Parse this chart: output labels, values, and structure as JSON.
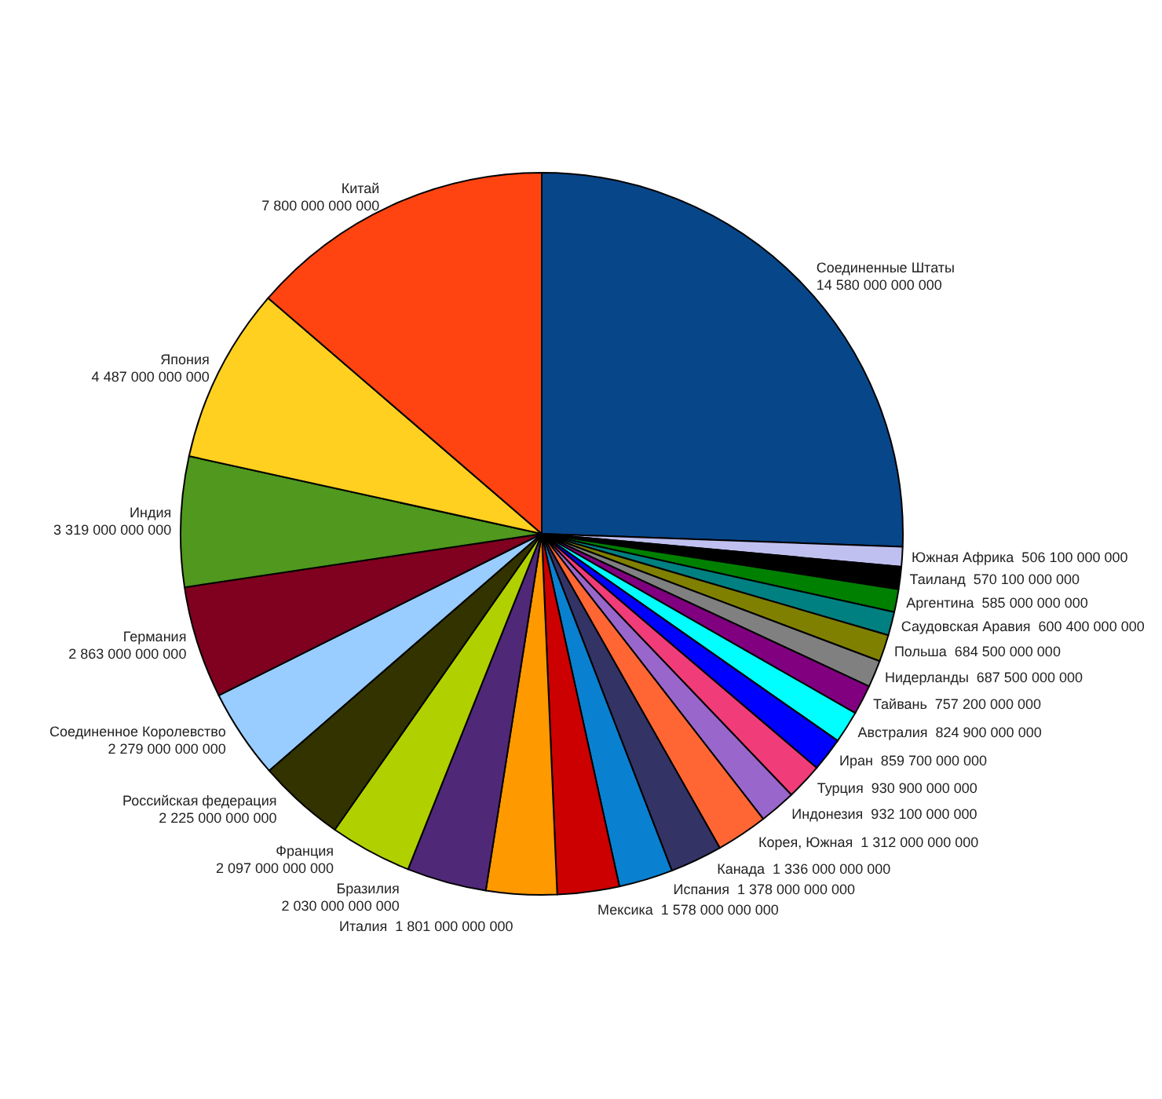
{
  "chart_data": {
    "type": "pie",
    "data_labels": true,
    "categories": [
      "Соединенные Штаты",
      "Южная Африка",
      "Таиланд",
      "Аргентина",
      "Саудовская Аравия",
      "Польша",
      "Нидерланды",
      "Тайвань",
      "Австралия",
      "Иран",
      "Турция",
      "Индонезия",
      "Корея, Южная",
      "Канада",
      "Испания",
      "Мексика",
      "Италия",
      "Бразилия",
      "Франция",
      "Российская федерация",
      "Соединенное Королевство",
      "Германия",
      "Индия",
      "Япония",
      "Китай"
    ],
    "values": [
      14580000000000,
      506100000000,
      570100000000,
      585000000000,
      600400000000,
      684500000000,
      687500000000,
      757200000000,
      824900000000,
      859700000000,
      930900000000,
      932100000000,
      1312000000000,
      1336000000000,
      1378000000000,
      1578000000000,
      1801000000000,
      2030000000000,
      2097000000000,
      2225000000000,
      2279000000000,
      2863000000000,
      3319000000000,
      4487000000000,
      7800000000000
    ],
    "colors": [
      "#08468a",
      "#c0c0f0",
      "#000000",
      "#008000",
      "#008080",
      "#808000",
      "#808080",
      "#800080",
      "#00ffff",
      "#0000ff",
      "#f03c78",
      "#9966cc",
      "#ff6633",
      "#333366",
      "#0a80d0",
      "#cc0000",
      "#ff9900",
      "#502878",
      "#b0d000",
      "#333300",
      "#99ccff",
      "#800020",
      "#50981e",
      "#ffd020",
      "#ff4411"
    ]
  }
}
